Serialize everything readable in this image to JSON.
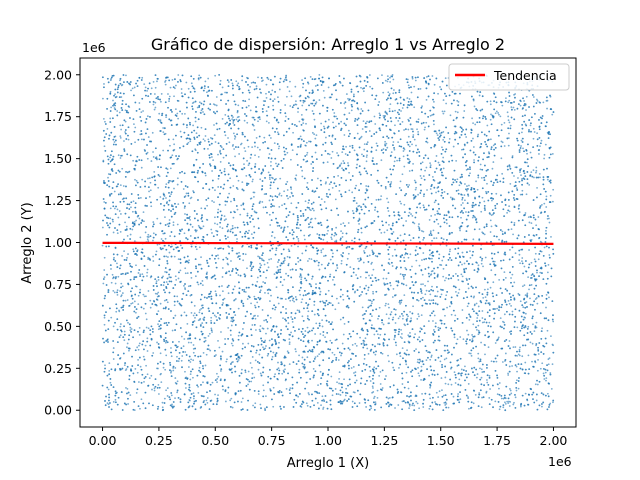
{
  "chart_data": {
    "type": "scatter",
    "title": "Gráfico de dispersión: Arreglo 1 vs Arreglo 2",
    "xlabel": "Arreglo 1 (X)",
    "ylabel": "Arreglo 2 (Y)",
    "x_offset_label": "1e6",
    "y_offset_label": "1e6",
    "xlim": [
      -100000,
      2100000
    ],
    "ylim": [
      -100000,
      2100000
    ],
    "xticks": [
      0.0,
      0.25,
      0.5,
      0.75,
      1.0,
      1.25,
      1.5,
      1.75,
      2.0
    ],
    "xtick_labels": [
      "0.00",
      "0.25",
      "0.50",
      "0.75",
      "1.00",
      "1.25",
      "1.50",
      "1.75",
      "2.00"
    ],
    "yticks": [
      0.0,
      0.25,
      0.5,
      0.75,
      1.0,
      1.25,
      1.5,
      1.75,
      2.0
    ],
    "ytick_labels": [
      "0.00",
      "0.25",
      "0.50",
      "0.75",
      "1.00",
      "1.25",
      "1.50",
      "1.75",
      "2.00"
    ],
    "scatter": {
      "distribution": "uniform",
      "x_range": [
        0,
        2000000
      ],
      "y_range": [
        0,
        2000000
      ],
      "approx_count": 10000,
      "color": "#1f77b4",
      "alpha": 0.6
    },
    "series": [
      {
        "name": "Tendencia",
        "type": "line",
        "color": "#ff0000",
        "x": [
          0,
          2000000
        ],
        "y": [
          998000,
          992000
        ]
      }
    ],
    "legend": {
      "entries": [
        "Tendencia"
      ],
      "placement": "upper right"
    },
    "grid": false
  }
}
